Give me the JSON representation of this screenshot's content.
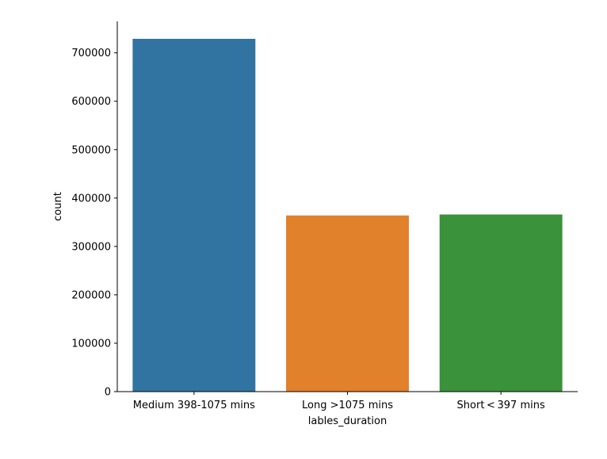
{
  "chart_data": {
    "type": "bar",
    "categories": [
      "Medium 398-1075 mins",
      "Long >1075 mins",
      "Short < 397 mins"
    ],
    "values": [
      729000,
      364000,
      366000
    ],
    "colors": [
      "#3274a1",
      "#e1812c",
      "#3a923a"
    ],
    "xlabel": "lables_duration",
    "ylabel": "count",
    "ylim": [
      0,
      765000
    ],
    "yticks": [
      0,
      100000,
      200000,
      300000,
      400000,
      500000,
      600000,
      700000
    ],
    "grid": false,
    "spines": [
      "left",
      "bottom"
    ]
  }
}
